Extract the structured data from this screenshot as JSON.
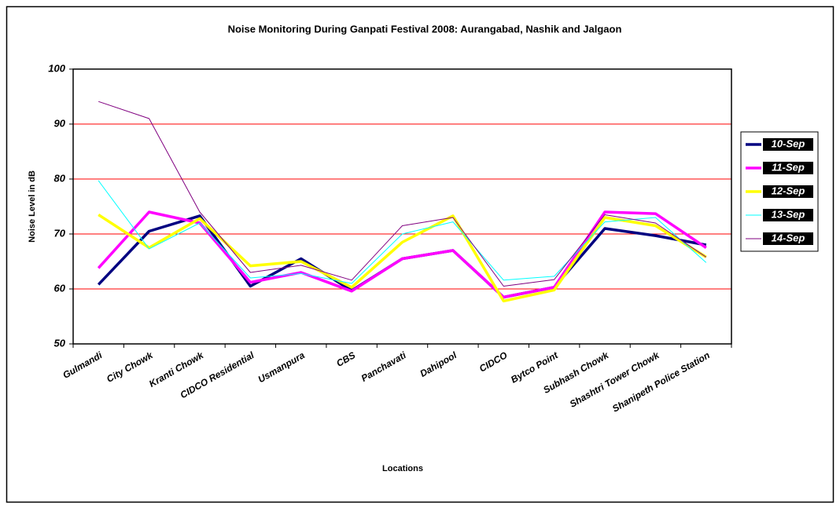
{
  "chart_data": {
    "type": "line",
    "title": "Noise Monitoring During Ganpati Festival 2008: Aurangabad, Nashik and Jalgaon",
    "x_label": "Locations",
    "y_label": "Noise Level in dB",
    "categories": [
      "Gulmandi",
      "City Chowk",
      "Kranti Chowk",
      "CIDCO Residential",
      "Usmanpura",
      "CBS",
      "Panchavati",
      "Dahipool",
      "CIDCO",
      "Bytco Point",
      "Subhash Chowk",
      "Shashtri Tower Chowk",
      "Shanipeth Police Station"
    ],
    "series": [
      {
        "name": "10-Sep",
        "color": "#000080",
        "values": [
          60.8,
          70.5,
          73.3,
          60.5,
          65.5,
          59.7,
          65.5,
          67,
          58.5,
          60.3,
          71,
          69.7,
          68
        ]
      },
      {
        "name": "11-Sep",
        "color": "#ff00ff",
        "values": [
          63.8,
          74,
          72,
          61.2,
          63,
          59.6,
          65.5,
          67,
          58.5,
          60.3,
          74,
          73.7,
          67.5
        ]
      },
      {
        "name": "12-Sep",
        "color": "#ffff00",
        "values": [
          73.5,
          67.5,
          72.8,
          64.2,
          65,
          60.3,
          68.5,
          73.3,
          57.8,
          59.8,
          73,
          71.5,
          65.8
        ]
      },
      {
        "name": "13-Sep",
        "color": "#00ffff",
        "values": [
          79.7,
          67.3,
          72,
          62,
          62.8,
          61,
          70,
          72.2,
          61.6,
          62.3,
          72.2,
          73,
          64.8
        ]
      },
      {
        "name": "14-Sep",
        "color": "#800080",
        "values": [
          94.1,
          91,
          74,
          63,
          64.3,
          61.6,
          71.5,
          73,
          60.5,
          61.7,
          73.5,
          72,
          65.8
        ]
      }
    ],
    "ylim": [
      50,
      100
    ],
    "yticks": [
      50,
      60,
      70,
      80,
      90,
      100
    ],
    "grid": true,
    "legend": "right"
  }
}
